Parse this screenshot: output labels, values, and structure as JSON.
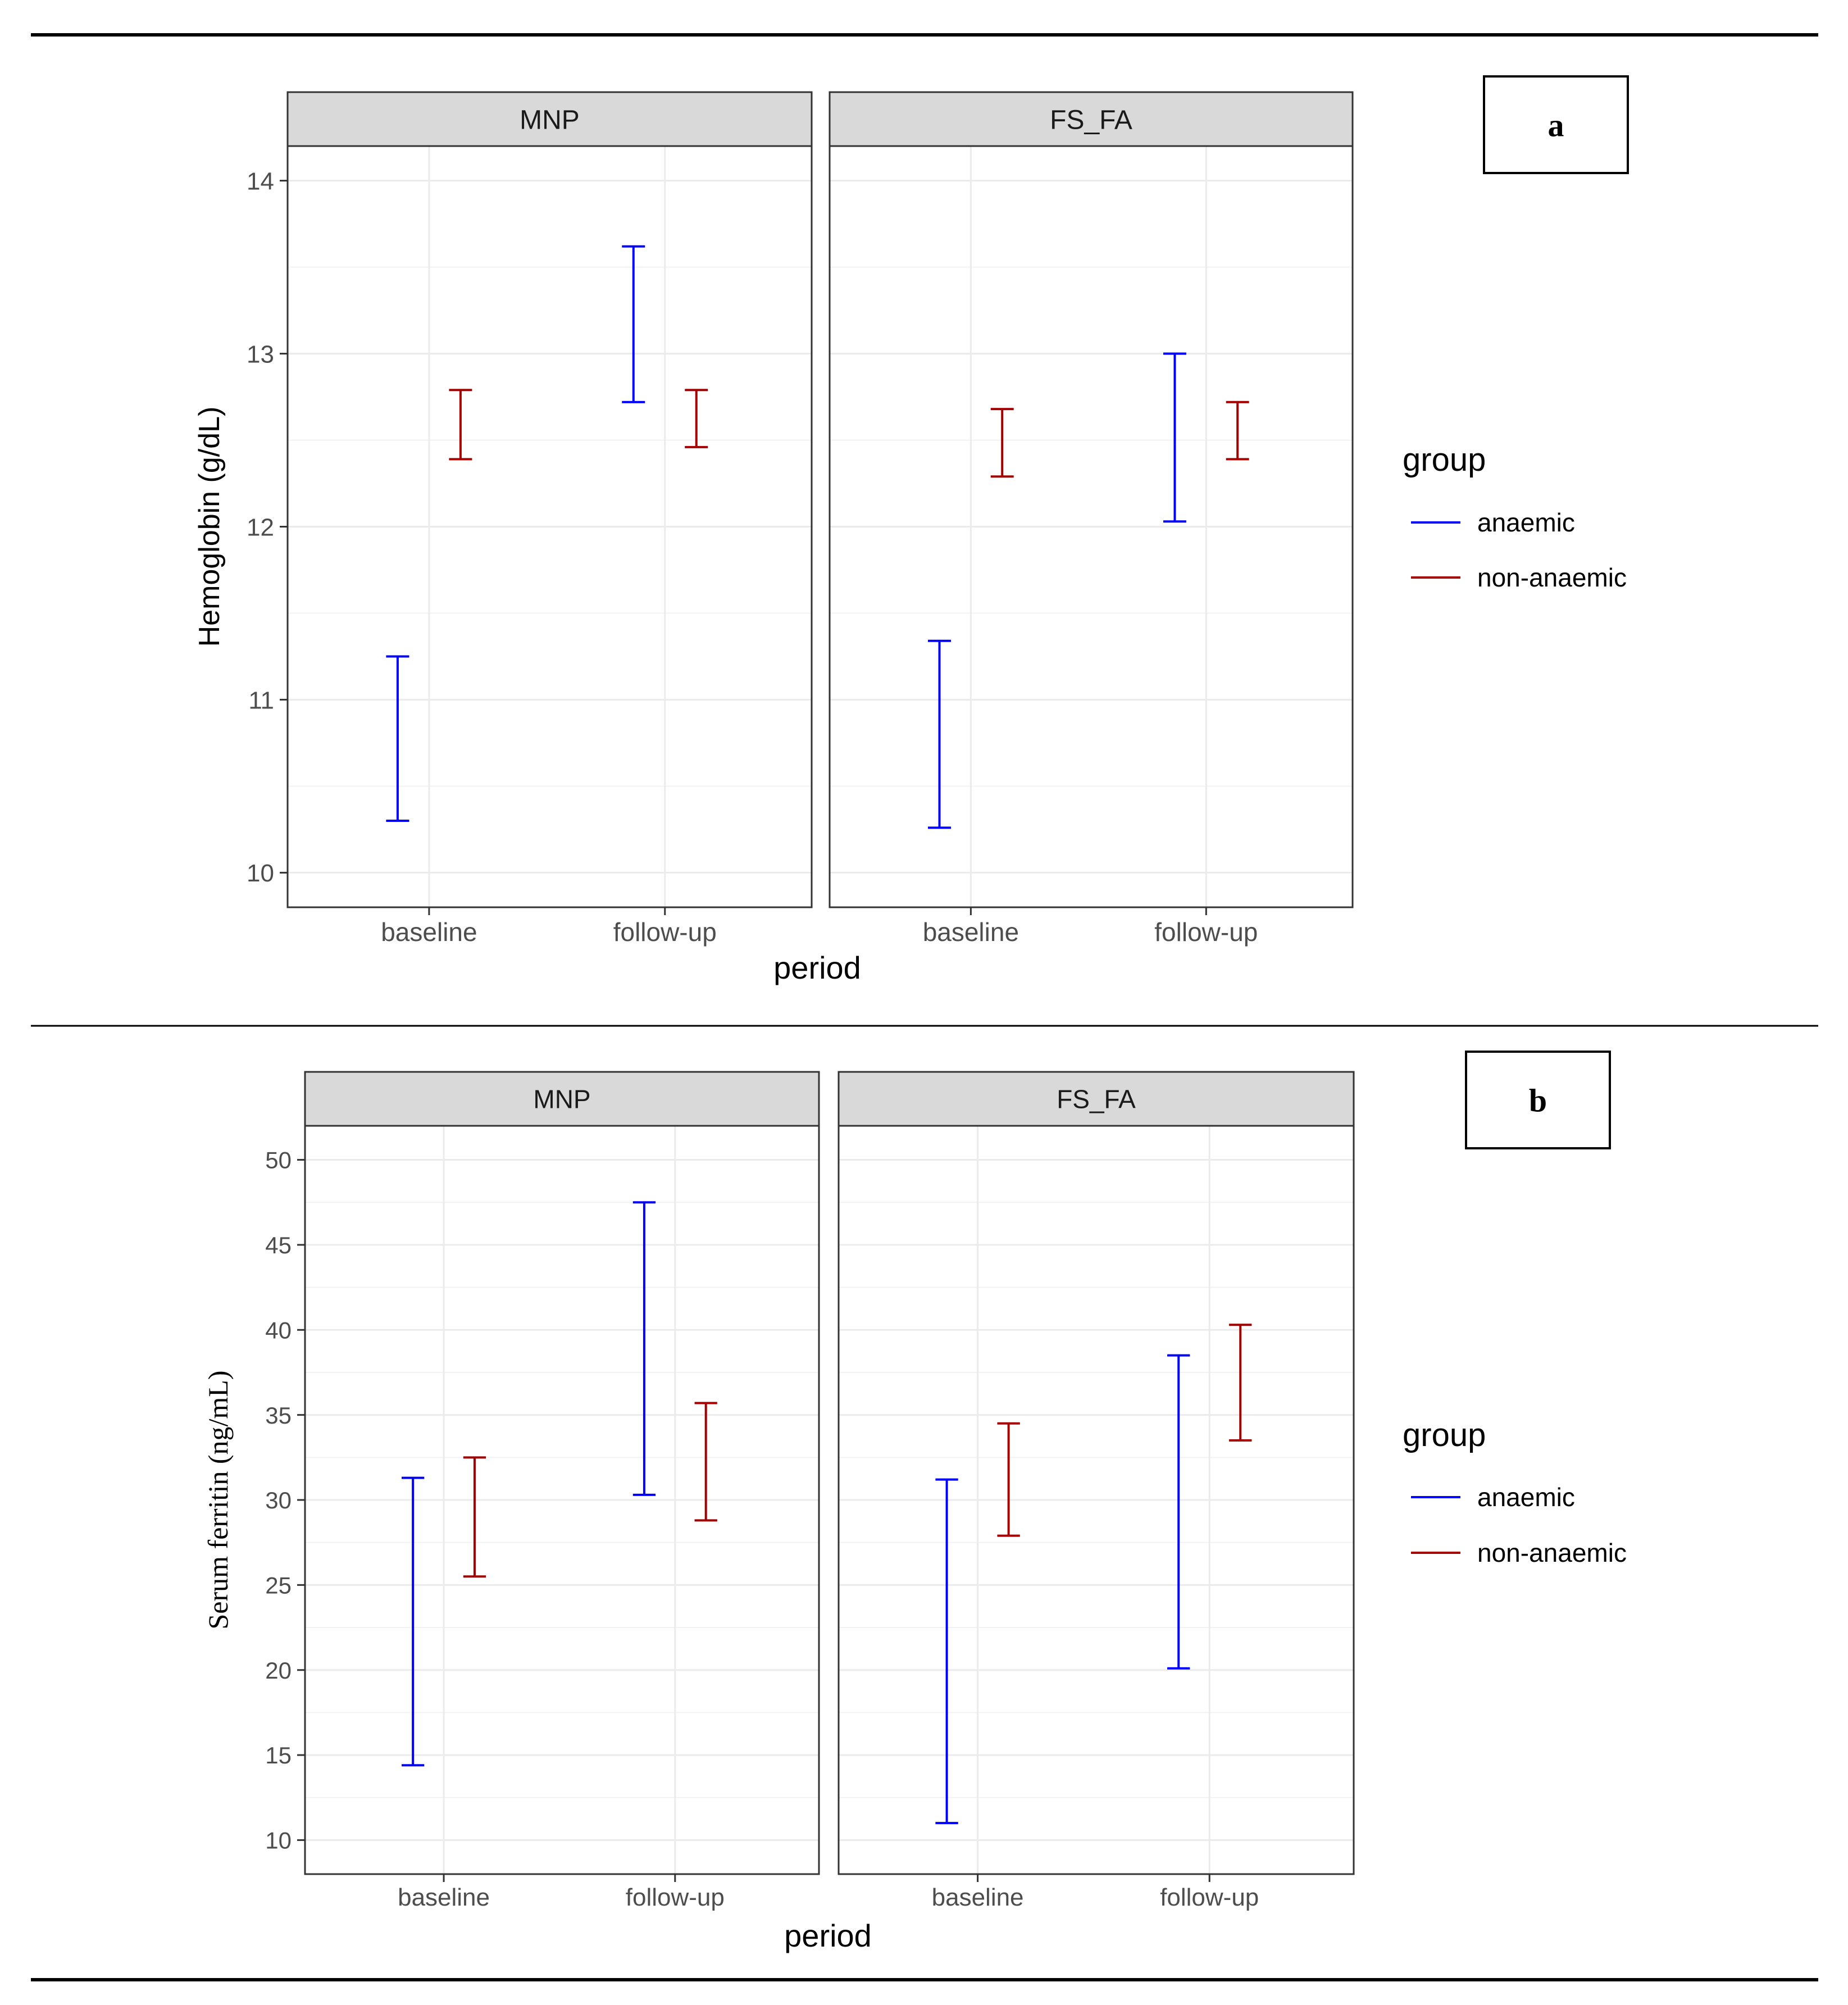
{
  "colors": {
    "anaemic": "#0000ff",
    "non_anaemic": "#a50000",
    "strip": "#d9d9d9",
    "grid": "#ebebeb",
    "axis": "#333333"
  },
  "chart_data": [
    {
      "type": "errorbar",
      "panel_label": "a",
      "ylabel": "Hemoglobin (g/dL)",
      "xlabel": "period",
      "categories": [
        "baseline",
        "follow-up"
      ],
      "ylim": [
        9.8,
        14.2
      ],
      "yticks": [
        10,
        11,
        12,
        13,
        14
      ],
      "legend": {
        "title": "group",
        "position": "right",
        "entries": [
          "anaemic",
          "non-anaemic"
        ]
      },
      "facets": [
        {
          "name": "MNP",
          "series": [
            {
              "name": "anaemic",
              "color_key": "anaemic",
              "points": [
                {
                  "x": "baseline",
                  "low": 10.3,
                  "high": 11.25
                },
                {
                  "x": "follow-up",
                  "low": 12.72,
                  "high": 13.62
                }
              ]
            },
            {
              "name": "non-anaemic",
              "color_key": "non_anaemic",
              "points": [
                {
                  "x": "baseline",
                  "low": 12.39,
                  "high": 12.79
                },
                {
                  "x": "follow-up",
                  "low": 12.46,
                  "high": 12.79
                }
              ]
            }
          ]
        },
        {
          "name": "FS_FA",
          "series": [
            {
              "name": "anaemic",
              "color_key": "anaemic",
              "points": [
                {
                  "x": "baseline",
                  "low": 10.26,
                  "high": 11.34
                },
                {
                  "x": "follow-up",
                  "low": 12.03,
                  "high": 13.0
                }
              ]
            },
            {
              "name": "non-anaemic",
              "color_key": "non_anaemic",
              "points": [
                {
                  "x": "baseline",
                  "low": 12.29,
                  "high": 12.68
                },
                {
                  "x": "follow-up",
                  "low": 12.39,
                  "high": 12.72
                }
              ]
            }
          ]
        }
      ]
    },
    {
      "type": "errorbar",
      "panel_label": "b",
      "ylabel": "Serum ferritin (ng/mL)",
      "xlabel": "period",
      "categories": [
        "baseline",
        "follow-up"
      ],
      "ylim": [
        8,
        52
      ],
      "yticks": [
        10,
        15,
        20,
        25,
        30,
        35,
        40,
        45,
        50
      ],
      "legend": {
        "title": "group",
        "position": "right",
        "entries": [
          "anaemic",
          "non-anaemic"
        ]
      },
      "facets": [
        {
          "name": "MNP",
          "series": [
            {
              "name": "anaemic",
              "color_key": "anaemic",
              "points": [
                {
                  "x": "baseline",
                  "low": 14.4,
                  "high": 31.3
                },
                {
                  "x": "follow-up",
                  "low": 30.3,
                  "high": 47.5
                }
              ]
            },
            {
              "name": "non-anaemic",
              "color_key": "non_anaemic",
              "points": [
                {
                  "x": "baseline",
                  "low": 25.5,
                  "high": 32.5
                },
                {
                  "x": "follow-up",
                  "low": 28.8,
                  "high": 35.7
                }
              ]
            }
          ]
        },
        {
          "name": "FS_FA",
          "series": [
            {
              "name": "anaemic",
              "color_key": "anaemic",
              "points": [
                {
                  "x": "baseline",
                  "low": 11.0,
                  "high": 31.2
                },
                {
                  "x": "follow-up",
                  "low": 20.1,
                  "high": 38.5
                }
              ]
            },
            {
              "name": "non-anaemic",
              "color_key": "non_anaemic",
              "points": [
                {
                  "x": "baseline",
                  "low": 27.9,
                  "high": 34.5
                },
                {
                  "x": "follow-up",
                  "low": 33.5,
                  "high": 40.3
                }
              ]
            }
          ]
        }
      ]
    }
  ]
}
